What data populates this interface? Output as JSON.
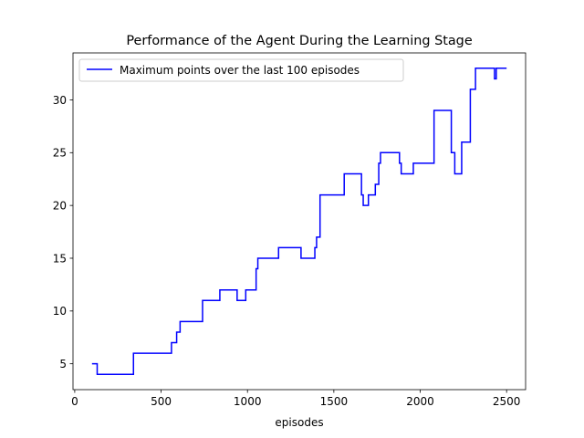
{
  "chart_data": {
    "type": "line",
    "title": "Performance of the Agent During the Learning Stage",
    "xlabel": "episodes",
    "ylabel": "",
    "xlim": [
      -10,
      2610
    ],
    "ylim": [
      2.55,
      34.45
    ],
    "xticks": [
      0,
      500,
      1000,
      1500,
      2000,
      2500
    ],
    "yticks": [
      5,
      10,
      15,
      20,
      25,
      30
    ],
    "grid": false,
    "legend": {
      "placement": "top-left",
      "entries": [
        "Maximum points over the last 100 episodes"
      ]
    },
    "colors": {
      "line": "#0000ff",
      "axis": "#000000"
    },
    "series": [
      {
        "name": "Maximum points over the last 100 episodes",
        "step": true,
        "points": [
          [
            100,
            5
          ],
          [
            130,
            5
          ],
          [
            130,
            4
          ],
          [
            340,
            4
          ],
          [
            340,
            6
          ],
          [
            560,
            6
          ],
          [
            560,
            7
          ],
          [
            590,
            7
          ],
          [
            590,
            8
          ],
          [
            610,
            8
          ],
          [
            610,
            9
          ],
          [
            740,
            9
          ],
          [
            740,
            11
          ],
          [
            840,
            11
          ],
          [
            840,
            12
          ],
          [
            940,
            12
          ],
          [
            940,
            11
          ],
          [
            990,
            11
          ],
          [
            990,
            12
          ],
          [
            1050,
            12
          ],
          [
            1050,
            14
          ],
          [
            1060,
            14
          ],
          [
            1060,
            15
          ],
          [
            1180,
            15
          ],
          [
            1180,
            16
          ],
          [
            1310,
            16
          ],
          [
            1310,
            15
          ],
          [
            1390,
            15
          ],
          [
            1390,
            16
          ],
          [
            1400,
            16
          ],
          [
            1400,
            17
          ],
          [
            1420,
            17
          ],
          [
            1420,
            21
          ],
          [
            1560,
            21
          ],
          [
            1560,
            23
          ],
          [
            1660,
            23
          ],
          [
            1660,
            21
          ],
          [
            1670,
            21
          ],
          [
            1670,
            20
          ],
          [
            1700,
            20
          ],
          [
            1700,
            21
          ],
          [
            1740,
            21
          ],
          [
            1740,
            22
          ],
          [
            1760,
            22
          ],
          [
            1760,
            24
          ],
          [
            1770,
            24
          ],
          [
            1770,
            25
          ],
          [
            1880,
            25
          ],
          [
            1880,
            24
          ],
          [
            1890,
            24
          ],
          [
            1890,
            23
          ],
          [
            1960,
            23
          ],
          [
            1960,
            24
          ],
          [
            2080,
            24
          ],
          [
            2080,
            29
          ],
          [
            2180,
            29
          ],
          [
            2180,
            25
          ],
          [
            2200,
            25
          ],
          [
            2200,
            23
          ],
          [
            2240,
            23
          ],
          [
            2240,
            26
          ],
          [
            2290,
            26
          ],
          [
            2290,
            31
          ],
          [
            2320,
            31
          ],
          [
            2320,
            33
          ],
          [
            2430,
            33
          ],
          [
            2430,
            32
          ],
          [
            2440,
            32
          ],
          [
            2440,
            33
          ],
          [
            2500,
            33
          ]
        ]
      }
    ]
  }
}
